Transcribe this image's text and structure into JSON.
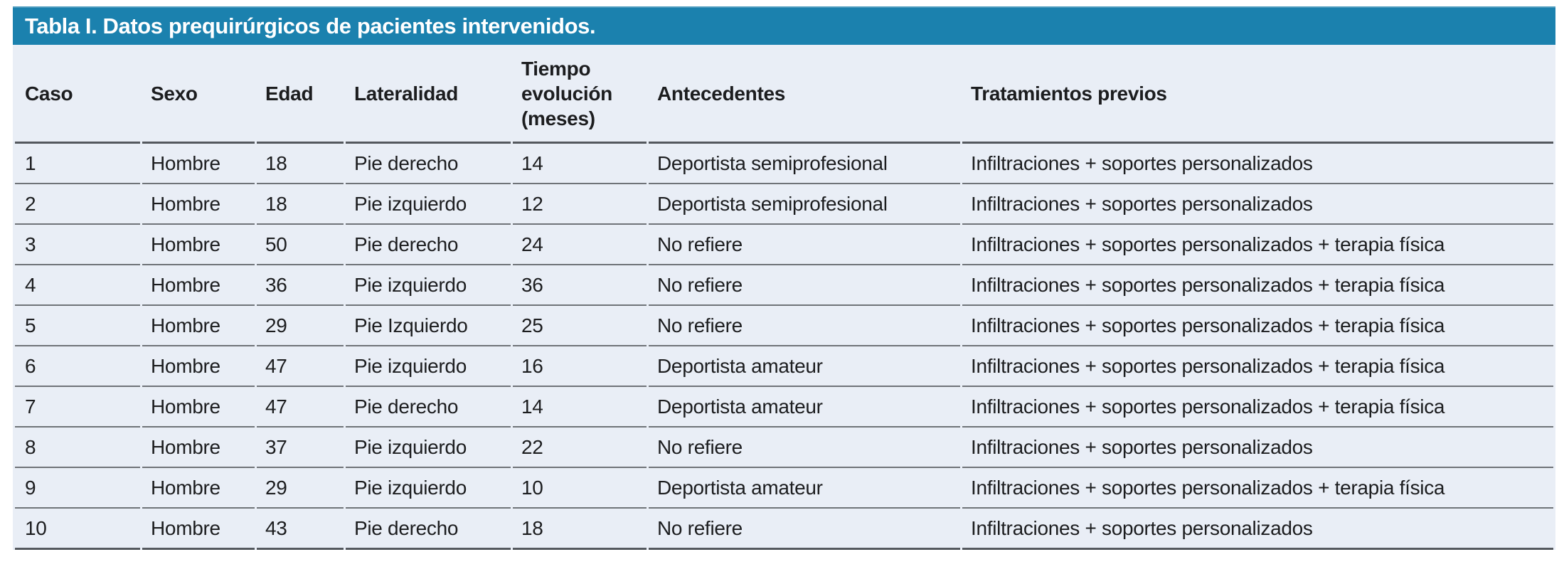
{
  "table": {
    "title": "Tabla I. Datos prequirúrgicos de pacientes intervenidos.",
    "columns": [
      "Caso",
      "Sexo",
      "Edad",
      "Lateralidad",
      "Tiempo evolución (meses)",
      "Antecedentes",
      "Tratamientos previos"
    ],
    "rows": [
      [
        "1",
        "Hombre",
        "18",
        "Pie derecho",
        "14",
        "Deportista semiprofesional",
        "Infiltraciones + soportes personalizados"
      ],
      [
        "2",
        "Hombre",
        "18",
        "Pie izquierdo",
        "12",
        "Deportista semiprofesional",
        "Infiltraciones + soportes personalizados"
      ],
      [
        "3",
        "Hombre",
        "50",
        "Pie derecho",
        "24",
        "No refiere",
        "Infiltraciones + soportes personalizados + terapia física"
      ],
      [
        "4",
        "Hombre",
        "36",
        "Pie izquierdo",
        "36",
        "No refiere",
        "Infiltraciones + soportes personalizados + terapia física"
      ],
      [
        "5",
        "Hombre",
        "29",
        "Pie Izquierdo",
        "25",
        "No refiere",
        "Infiltraciones + soportes personalizados + terapia física"
      ],
      [
        "6",
        "Hombre",
        "47",
        "Pie izquierdo",
        "16",
        "Deportista amateur",
        "Infiltraciones + soportes personalizados + terapia física"
      ],
      [
        "7",
        "Hombre",
        "47",
        "Pie derecho",
        "14",
        "Deportista amateur",
        "Infiltraciones + soportes personalizados + terapia física"
      ],
      [
        "8",
        "Hombre",
        "37",
        "Pie izquierdo",
        "22",
        "No refiere",
        "Infiltraciones + soportes personalizados"
      ],
      [
        "9",
        "Hombre",
        "29",
        "Pie izquierdo",
        "10",
        "Deportista amateur",
        "Infiltraciones + soportes personalizados + terapia física"
      ],
      [
        "10",
        "Hombre",
        "43",
        "Pie derecho",
        "18",
        "No refiere",
        "Infiltraciones + soportes personalizados"
      ]
    ]
  },
  "colors": {
    "title_bar": "#1b81ae",
    "title_text": "#ffffff",
    "table_background": "#e9eef6",
    "heavy_rule": "#54585e",
    "row_rule": "#6f7378",
    "text": "#1c1d1f"
  }
}
